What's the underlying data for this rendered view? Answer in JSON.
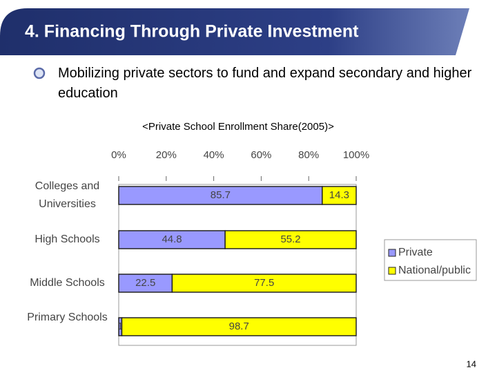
{
  "slide": {
    "title": "4.  Financing Through Private Investment",
    "bullet": "Mobilizing private sectors to fund and expand secondary and higher education",
    "page_number": "14"
  },
  "chart_data": {
    "type": "bar",
    "orientation": "horizontal",
    "stacked": true,
    "title": "<Private School Enrollment Share(2005)>",
    "categories": [
      "Colleges and Universities",
      "High Schools",
      "Middle Schools",
      "Primary Schools"
    ],
    "series": [
      {
        "name": "Private",
        "color": "#9999ff",
        "values": [
          85.7,
          44.8,
          22.5,
          1.3
        ]
      },
      {
        "name": "National/public",
        "color": "#ffff00",
        "values": [
          14.3,
          55.2,
          77.5,
          98.7
        ]
      }
    ],
    "xlim": [
      0,
      100
    ],
    "xticks": [
      {
        "value": 0,
        "label": "0%"
      },
      {
        "value": 20,
        "label": "20%"
      },
      {
        "value": 40,
        "label": "40%"
      },
      {
        "value": 60,
        "label": "60%"
      },
      {
        "value": 80,
        "label": "80%"
      },
      {
        "value": 100,
        "label": "100%"
      }
    ],
    "legend": "right"
  }
}
